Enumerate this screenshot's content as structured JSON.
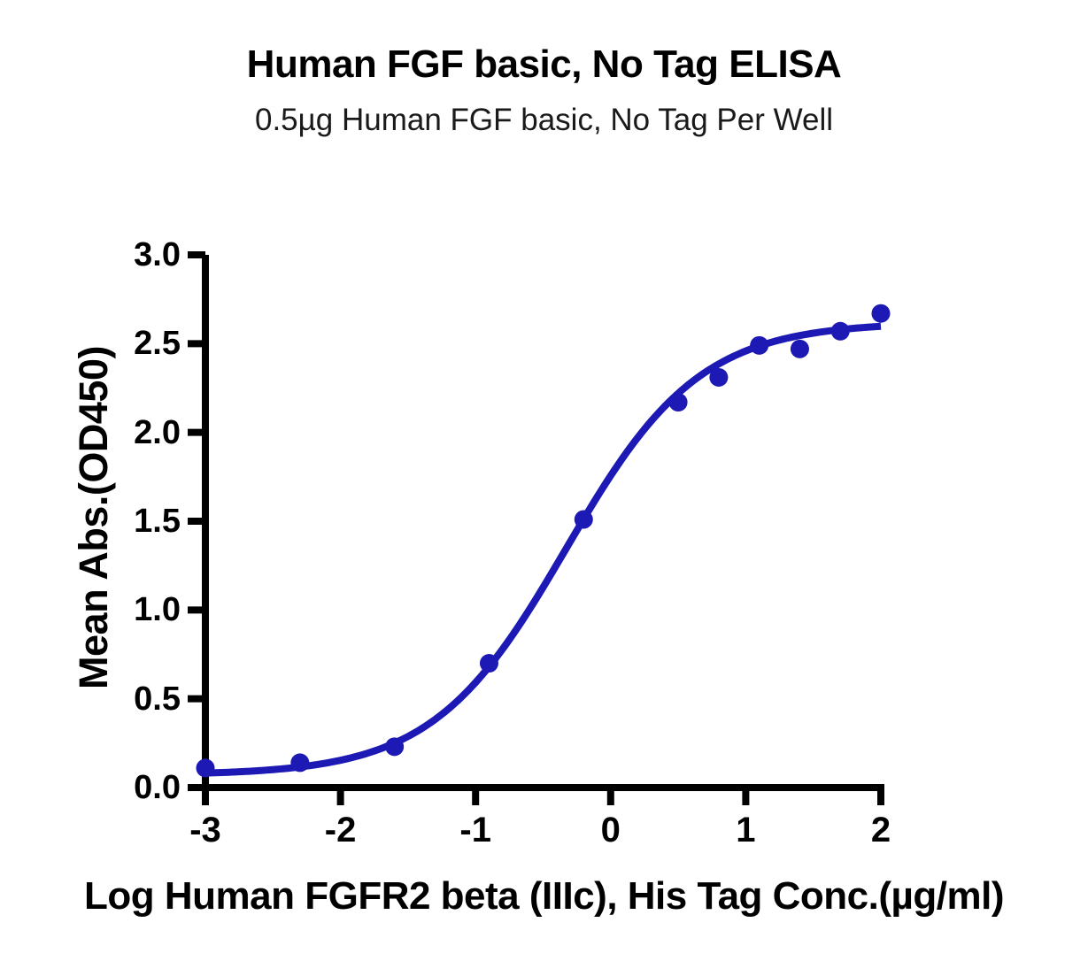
{
  "figure": {
    "title": "Human FGF basic, No Tag ELISA",
    "subtitle": "0.5µg Human FGF basic, No Tag Per Well"
  },
  "chart_data": {
    "type": "scatter",
    "title": "Human FGF basic, No Tag ELISA",
    "subtitle": "0.5µg Human FGF basic, No Tag Per Well",
    "xlabel": "Log Human FGFR2 beta (IIIc), His Tag Conc.(µg/ml)",
    "ylabel": "Mean Abs.(OD450)",
    "xlim": [
      -3,
      2
    ],
    "ylim": [
      0,
      3
    ],
    "x_ticks": [
      -3,
      -2,
      -1,
      0,
      1,
      2
    ],
    "x_tick_labels": [
      "-3",
      "-2",
      "-1",
      "0",
      "1",
      "2"
    ],
    "y_ticks": [
      0,
      0.5,
      1,
      1.5,
      2,
      2.5,
      3
    ],
    "y_tick_labels": [
      "0.0",
      "0.5",
      "1.0",
      "1.5",
      "2.0",
      "2.5",
      "3.0"
    ],
    "grid": false,
    "legend": false,
    "series": [
      {
        "name": "Human FGFR2 beta (IIIc), His Tag",
        "points": [
          [
            -3.0,
            0.11
          ],
          [
            -2.3,
            0.14
          ],
          [
            -1.6,
            0.23
          ],
          [
            -0.9,
            0.7
          ],
          [
            -0.2,
            1.51
          ],
          [
            0.5,
            2.17
          ],
          [
            0.8,
            2.31
          ],
          [
            1.1,
            2.49
          ],
          [
            1.4,
            2.47
          ],
          [
            1.7,
            2.57
          ],
          [
            2.0,
            2.67
          ]
        ]
      }
    ],
    "fit_curve": {
      "model": "4PL sigmoidal dose-response",
      "bottom": 0.07,
      "top": 2.62,
      "logec50": -0.33,
      "hillslope": 0.88,
      "x_start": -3.0,
      "x_end": 2.0
    },
    "colors": {
      "curve": "#1d19b5",
      "points": "#1d19b5",
      "axis": "#000000",
      "text": "#000000",
      "background": "#ffffff"
    }
  }
}
